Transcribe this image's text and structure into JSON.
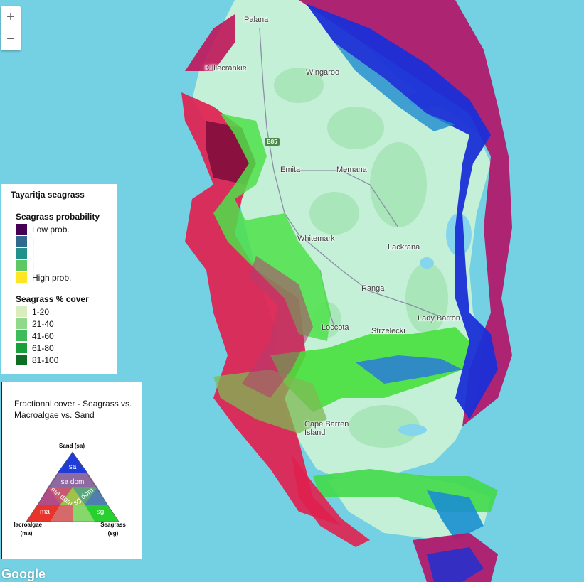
{
  "map": {
    "places": [
      {
        "name": "Palana",
        "key": "palana"
      },
      {
        "name": "Killiecrankie",
        "key": "killiecrankie"
      },
      {
        "name": "Wingaroo",
        "key": "wingaroo"
      },
      {
        "name": "Emita",
        "key": "emita"
      },
      {
        "name": "Memana",
        "key": "memana"
      },
      {
        "name": "Whitemark",
        "key": "whitemark"
      },
      {
        "name": "Lackrana",
        "key": "lackrana"
      },
      {
        "name": "Ranga",
        "key": "ranga"
      },
      {
        "name": "Lady Barron",
        "key": "lady-barron"
      },
      {
        "name": "Strzelecki",
        "key": "strzelecki"
      },
      {
        "name": "Loccota",
        "key": "loccota"
      },
      {
        "name": "Cape Barren Island",
        "key": "cape-barren-island"
      }
    ],
    "road_shield": "B85",
    "zoom_in": "+",
    "zoom_out": "−",
    "attribution": "Google"
  },
  "legend": {
    "title": "Tayaritja seagrass",
    "probability": {
      "heading": "Seagrass probability",
      "items": [
        {
          "label": "Low prob.",
          "color": "#440154"
        },
        {
          "label": "|",
          "color": "#31688e"
        },
        {
          "label": "|",
          "color": "#21918c"
        },
        {
          "label": "|",
          "color": "#5ec962"
        },
        {
          "label": "High prob.",
          "color": "#fde725"
        }
      ]
    },
    "cover": {
      "heading": "Seagrass % cover",
      "items": [
        {
          "label": "1-20",
          "color": "#d9ecbe"
        },
        {
          "label": "21-40",
          "color": "#8fd98a"
        },
        {
          "label": "41-60",
          "color": "#3cbd5a"
        },
        {
          "label": "61-80",
          "color": "#17a03a"
        },
        {
          "label": "81-100",
          "color": "#0c6e22"
        }
      ]
    }
  },
  "triangle": {
    "title": "Fractional cover - Seagrass vs. Macroalgae vs. Sand",
    "vertex_top": "Sand (sa)",
    "vertex_left_1": "Macroalgae",
    "vertex_left_2": "(ma)",
    "vertex_right_1": "Seagrass",
    "vertex_right_2": "(sg)",
    "cells": {
      "sa": "sa",
      "sa_dom": "sa dom",
      "ma_dom": "ma dom",
      "sg_dom": "sg dom",
      "ma": "ma",
      "sg": "sg"
    },
    "colors": {
      "sa": "#1f3bd8",
      "sa_dom": "#8e6aa0",
      "ma": "#e8342b",
      "sg": "#27d02f",
      "ma_dom": "#c65a70",
      "sg_dom": "#5aa67c",
      "mix_left": "#d66a6a",
      "mix_mid": "#a0c24a",
      "mix_right": "#86d86a",
      "mix_top_left": "#b14c89",
      "mix_top_right": "#4f7fb1"
    }
  }
}
